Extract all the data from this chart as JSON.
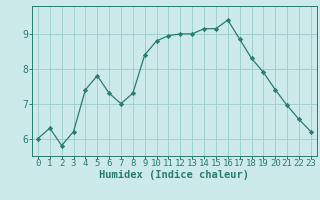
{
  "x": [
    0,
    1,
    2,
    3,
    4,
    5,
    6,
    7,
    8,
    9,
    10,
    11,
    12,
    13,
    14,
    15,
    16,
    17,
    18,
    19,
    20,
    21,
    22,
    23
  ],
  "y": [
    6.0,
    6.3,
    5.8,
    6.2,
    7.4,
    7.8,
    7.3,
    7.0,
    7.3,
    8.4,
    8.8,
    8.95,
    9.0,
    9.0,
    9.15,
    9.15,
    9.4,
    8.85,
    8.3,
    7.9,
    7.4,
    6.95,
    6.55,
    6.2
  ],
  "xlabel": "Humidex (Indice chaleur)",
  "ylim": [
    5.5,
    9.8
  ],
  "xlim": [
    -0.5,
    23.5
  ],
  "yticks": [
    6,
    7,
    8,
    9
  ],
  "xticks": [
    0,
    1,
    2,
    3,
    4,
    5,
    6,
    7,
    8,
    9,
    10,
    11,
    12,
    13,
    14,
    15,
    16,
    17,
    18,
    19,
    20,
    21,
    22,
    23
  ],
  "line_color": "#2a7d6e",
  "bg_color": "#cceaea",
  "grid_color": "#99cccc",
  "tick_fontsize": 6.5,
  "xlabel_fontsize": 7.5
}
